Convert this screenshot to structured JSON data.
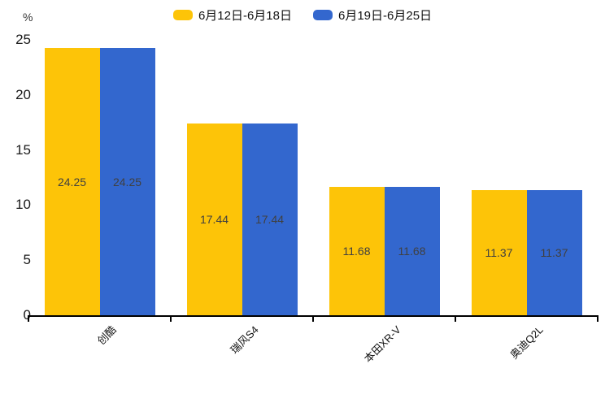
{
  "chart_data": {
    "type": "bar",
    "title": "",
    "unit_label": "%",
    "categories": [
      "创酷",
      "瑞风S4",
      "本田XR-V",
      "奥迪Q2L"
    ],
    "series": [
      {
        "name": "6月12日-6月18日",
        "color": "#FDC408",
        "values": [
          24.25,
          17.44,
          11.68,
          11.37
        ]
      },
      {
        "name": "6月19日-6月25日",
        "color": "#3367CE",
        "values": [
          24.25,
          17.44,
          11.68,
          11.37
        ]
      }
    ],
    "y_ticks": [
      0,
      5,
      10,
      15,
      20,
      25
    ],
    "ylim": [
      0,
      25
    ],
    "grid": false,
    "legend_position": "top-center",
    "value_labels": "inside-center",
    "axis_color": "#000000",
    "label_color": "#404040"
  }
}
